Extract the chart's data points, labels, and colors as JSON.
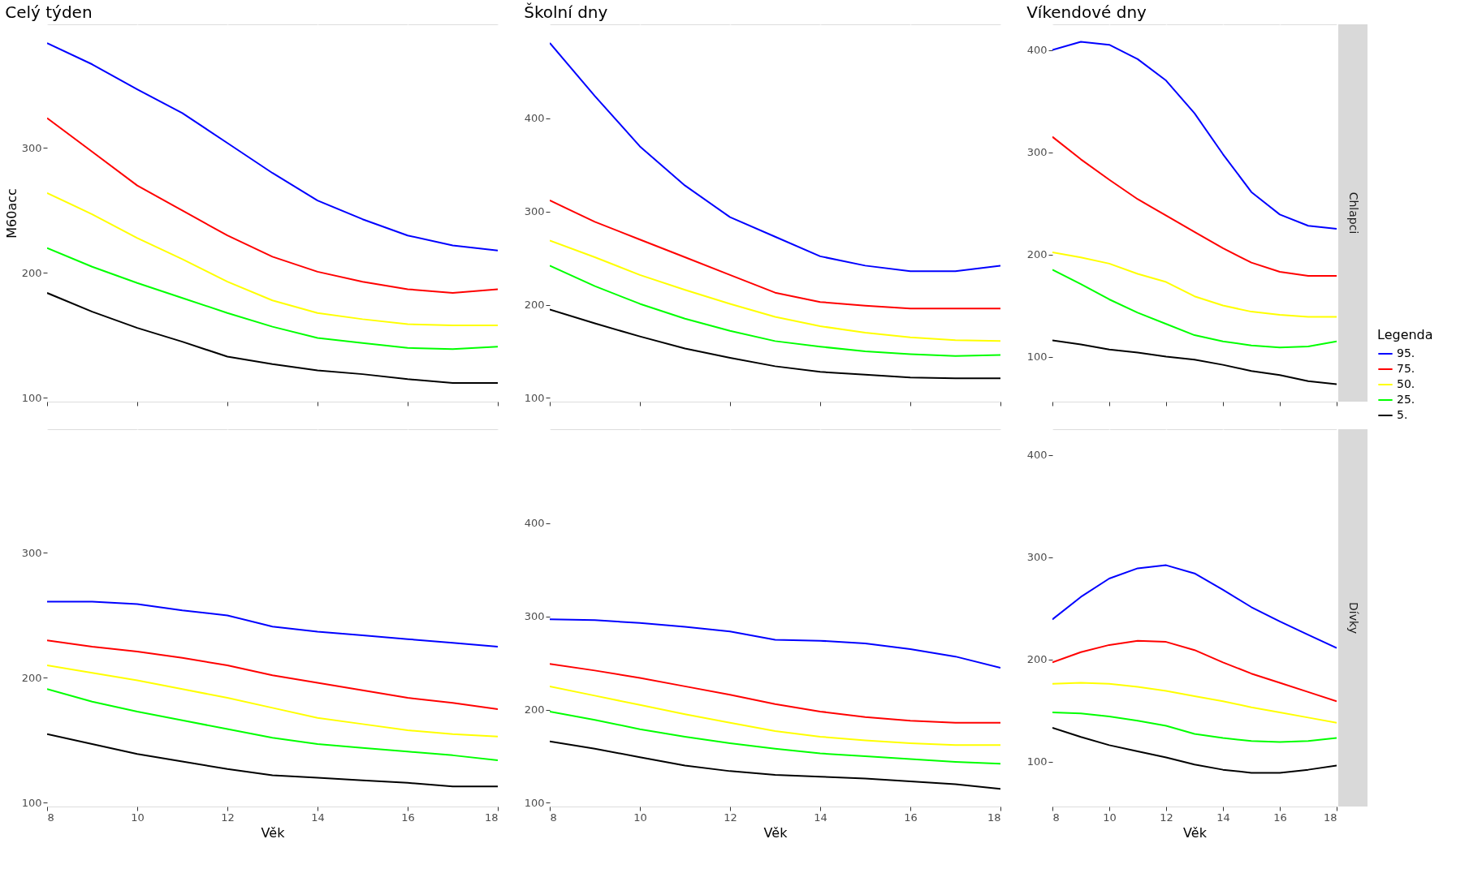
{
  "chart_data": [
    {
      "type": "line",
      "title": "Celý týden",
      "ylabel": "M60acc",
      "x": [
        8,
        9,
        10,
        11,
        12,
        13,
        14,
        15,
        16,
        17,
        18
      ],
      "xlim": [
        8,
        18
      ],
      "xticks": [
        8,
        10,
        12,
        14,
        16,
        18
      ],
      "ylim": [
        97,
        399
      ],
      "yticks": [
        100,
        200,
        300
      ],
      "grid": true,
      "tick_labels": "y",
      "series": [
        {
          "color": "#0000ff",
          "values": [
            384,
            367,
            347,
            328,
            304,
            280,
            258,
            243,
            230,
            222,
            218
          ]
        },
        {
          "color": "#ff0000",
          "values": [
            324,
            297,
            270,
            250,
            230,
            213,
            201,
            193,
            187,
            184,
            187
          ]
        },
        {
          "color": "#ffff00",
          "values": [
            264,
            247,
            228,
            211,
            193,
            178,
            168,
            163,
            159,
            158,
            158
          ]
        },
        {
          "color": "#00ff00",
          "values": [
            220,
            205,
            192,
            180,
            168,
            157,
            148,
            144,
            140,
            139,
            141
          ]
        },
        {
          "color": "#000000",
          "values": [
            184,
            169,
            156,
            145,
            133,
            127,
            122,
            119,
            115,
            112,
            112
          ]
        }
      ]
    },
    {
      "type": "line",
      "title": "Školní dny",
      "x": [
        8,
        9,
        10,
        11,
        12,
        13,
        14,
        15,
        16,
        17,
        18
      ],
      "xlim": [
        8,
        18
      ],
      "xticks": [
        8,
        10,
        12,
        14,
        16,
        18
      ],
      "ylim": [
        96,
        501
      ],
      "yticks": [
        100,
        200,
        300,
        400
      ],
      "grid": true,
      "tick_labels": "y",
      "series": [
        {
          "color": "#0000ff",
          "values": [
            481,
            424,
            370,
            328,
            294,
            273,
            252,
            242,
            236,
            236,
            242
          ]
        },
        {
          "color": "#ff0000",
          "values": [
            312,
            289,
            270,
            251,
            232,
            213,
            203,
            199,
            196,
            196,
            196
          ]
        },
        {
          "color": "#ffff00",
          "values": [
            269,
            251,
            232,
            216,
            201,
            187,
            177,
            170,
            165,
            162,
            161
          ]
        },
        {
          "color": "#00ff00",
          "values": [
            242,
            220,
            201,
            185,
            172,
            161,
            155,
            150,
            147,
            145,
            146
          ]
        },
        {
          "color": "#000000",
          "values": [
            195,
            180,
            166,
            153,
            143,
            134,
            128,
            125,
            122,
            121,
            121
          ]
        }
      ]
    },
    {
      "type": "line",
      "title": "Víkendové dny",
      "x": [
        8,
        9,
        10,
        11,
        12,
        13,
        14,
        15,
        16,
        17,
        18
      ],
      "xlim": [
        8,
        18
      ],
      "xticks": [
        8,
        10,
        12,
        14,
        16,
        18
      ],
      "ylim": [
        56,
        425
      ],
      "yticks": [
        100,
        200,
        300,
        400
      ],
      "grid": true,
      "tick_labels": "y",
      "legend": "right",
      "legend_title": "Legenda",
      "annotations": [
        "Chlapci"
      ],
      "series": [
        {
          "name": "95.",
          "color": "#0000ff",
          "values": [
            400,
            408,
            405,
            391,
            370,
            338,
            298,
            261,
            239,
            228,
            225
          ]
        },
        {
          "name": "75.",
          "color": "#ff0000",
          "values": [
            315,
            293,
            273,
            254,
            238,
            222,
            206,
            192,
            183,
            179,
            179
          ]
        },
        {
          "name": "50.",
          "color": "#ffff00",
          "values": [
            202,
            197,
            191,
            181,
            173,
            159,
            150,
            144,
            141,
            139,
            139
          ]
        },
        {
          "name": "25.",
          "color": "#00ff00",
          "values": [
            185,
            171,
            156,
            143,
            132,
            121,
            115,
            111,
            109,
            110,
            115
          ]
        },
        {
          "name": "5.",
          "color": "#000000",
          "values": [
            116,
            112,
            107,
            104,
            100,
            97,
            92,
            86,
            82,
            76,
            73
          ]
        }
      ]
    },
    {
      "type": "line",
      "xlabel": "Věk",
      "x": [
        8,
        9,
        10,
        11,
        12,
        13,
        14,
        15,
        16,
        17,
        18
      ],
      "xlim": [
        8,
        18
      ],
      "xticks": [
        8,
        10,
        12,
        14,
        16,
        18
      ],
      "ylim": [
        97,
        399
      ],
      "yticks": [
        100,
        200,
        300
      ],
      "grid": true,
      "series": [
        {
          "color": "#0000ff",
          "values": [
            261,
            261,
            259,
            254,
            250,
            241,
            237,
            234,
            231,
            228,
            225
          ]
        },
        {
          "color": "#ff0000",
          "values": [
            230,
            225,
            221,
            216,
            210,
            202,
            196,
            190,
            184,
            180,
            175
          ]
        },
        {
          "color": "#ffff00",
          "values": [
            210,
            204,
            198,
            191,
            184,
            176,
            168,
            163,
            158,
            155,
            153
          ]
        },
        {
          "color": "#00ff00",
          "values": [
            191,
            181,
            173,
            166,
            159,
            152,
            147,
            144,
            141,
            138,
            134
          ]
        },
        {
          "color": "#000000",
          "values": [
            155,
            147,
            139,
            133,
            127,
            122,
            120,
            118,
            116,
            113,
            113
          ]
        }
      ]
    },
    {
      "type": "line",
      "xlabel": "Věk",
      "x": [
        8,
        9,
        10,
        11,
        12,
        13,
        14,
        15,
        16,
        17,
        18
      ],
      "xlim": [
        8,
        18
      ],
      "xticks": [
        8,
        10,
        12,
        14,
        16,
        18
      ],
      "ylim": [
        96,
        501
      ],
      "yticks": [
        100,
        200,
        300,
        400
      ],
      "grid": true,
      "series": [
        {
          "color": "#0000ff",
          "values": [
            297,
            296,
            293,
            289,
            284,
            275,
            274,
            271,
            265,
            257,
            245
          ]
        },
        {
          "color": "#ff0000",
          "values": [
            249,
            242,
            234,
            225,
            216,
            206,
            198,
            192,
            188,
            186,
            186
          ]
        },
        {
          "color": "#ffff00",
          "values": [
            225,
            215,
            205,
            195,
            186,
            177,
            171,
            167,
            164,
            162,
            162
          ]
        },
        {
          "color": "#00ff00",
          "values": [
            198,
            189,
            179,
            171,
            164,
            158,
            153,
            150,
            147,
            144,
            142
          ]
        },
        {
          "color": "#000000",
          "values": [
            166,
            158,
            149,
            140,
            134,
            130,
            128,
            126,
            123,
            120,
            115
          ]
        }
      ]
    },
    {
      "type": "line",
      "xlabel": "Věk",
      "x": [
        8,
        9,
        10,
        11,
        12,
        13,
        14,
        15,
        16,
        17,
        18
      ],
      "xlim": [
        8,
        18
      ],
      "xticks": [
        8,
        10,
        12,
        14,
        16,
        18
      ],
      "ylim": [
        56,
        425
      ],
      "yticks": [
        100,
        200,
        300,
        400
      ],
      "grid": true,
      "annotations": [
        "Dívky"
      ],
      "series": [
        {
          "color": "#0000ff",
          "values": [
            239,
            261,
            279,
            289,
            292,
            284,
            268,
            251,
            237,
            224,
            211
          ]
        },
        {
          "color": "#ff0000",
          "values": [
            197,
            207,
            214,
            218,
            217,
            209,
            197,
            186,
            177,
            168,
            159
          ]
        },
        {
          "color": "#ffff00",
          "values": [
            176,
            177,
            176,
            173,
            169,
            164,
            159,
            153,
            148,
            143,
            138
          ]
        },
        {
          "color": "#00ff00",
          "values": [
            148,
            147,
            144,
            140,
            135,
            127,
            123,
            120,
            119,
            120,
            123
          ]
        },
        {
          "color": "#000000",
          "values": [
            133,
            124,
            116,
            110,
            104,
            97,
            92,
            89,
            89,
            92,
            96
          ]
        }
      ]
    }
  ]
}
